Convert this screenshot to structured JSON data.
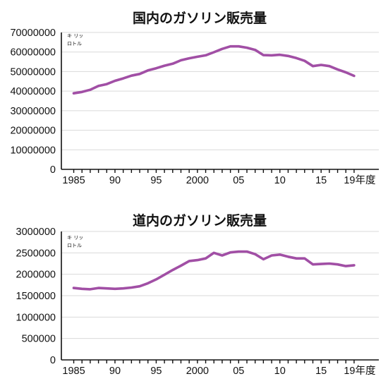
{
  "colors": {
    "series": "#a14fa5",
    "grid": "#d9d9d9",
    "axis": "#111111"
  },
  "chart_data": [
    {
      "type": "line",
      "title": "国内のガソリン販売量",
      "unit_label": [
        "キ リッ",
        "ロトル"
      ],
      "x": [
        1985,
        1986,
        1987,
        1988,
        1989,
        1990,
        1991,
        1992,
        1993,
        1994,
        1995,
        1996,
        1997,
        1998,
        1999,
        2000,
        2001,
        2002,
        2003,
        2004,
        2005,
        2006,
        2007,
        2008,
        2009,
        2010,
        2011,
        2012,
        2013,
        2014,
        2015,
        2016,
        2017,
        2018,
        2019
      ],
      "x_tick_labels": [
        "1985",
        "90",
        "95",
        "2000",
        "05",
        "10",
        "15",
        "19年度"
      ],
      "y_tick_labels": [
        "0",
        "10000000",
        "20000000",
        "30000000",
        "40000000",
        "50000000",
        "60000000",
        "70000000"
      ],
      "ylim": [
        0,
        70000000
      ],
      "grid": true,
      "series": [
        {
          "values": [
            38900000,
            39600000,
            40700000,
            42700000,
            43600000,
            45300000,
            46500000,
            47900000,
            48800000,
            50600000,
            51700000,
            53000000,
            54000000,
            55800000,
            56800000,
            57600000,
            58300000,
            59900000,
            61600000,
            62900000,
            62900000,
            62200000,
            61100000,
            58400000,
            58300000,
            58600000,
            58000000,
            56900000,
            55500000,
            52800000,
            53400000,
            52800000,
            51100000,
            49600000,
            47800000
          ]
        }
      ]
    },
    {
      "type": "line",
      "title": "道内のガソリン販売量",
      "unit_label": [
        "キ リッ",
        "ロトル"
      ],
      "x": [
        1985,
        1986,
        1987,
        1988,
        1989,
        1990,
        1991,
        1992,
        1993,
        1994,
        1995,
        1996,
        1997,
        1998,
        1999,
        2000,
        2001,
        2002,
        2003,
        2004,
        2005,
        2006,
        2007,
        2008,
        2009,
        2010,
        2011,
        2012,
        2013,
        2014,
        2015,
        2016,
        2017,
        2018,
        2019
      ],
      "x_tick_labels": [
        "1985",
        "90",
        "95",
        "2000",
        "05",
        "10",
        "15",
        "19年度"
      ],
      "y_tick_labels": [
        "0",
        "500000",
        "1000000",
        "1500000",
        "2000000",
        "2500000",
        "3000000"
      ],
      "ylim": [
        0,
        3000000
      ],
      "grid": true,
      "series": [
        {
          "values": [
            1680000,
            1660000,
            1650000,
            1680000,
            1670000,
            1660000,
            1670000,
            1690000,
            1720000,
            1790000,
            1880000,
            1990000,
            2100000,
            2200000,
            2310000,
            2330000,
            2370000,
            2500000,
            2440000,
            2510000,
            2530000,
            2530000,
            2470000,
            2350000,
            2440000,
            2460000,
            2410000,
            2370000,
            2370000,
            2230000,
            2240000,
            2250000,
            2230000,
            2190000,
            2210000
          ]
        }
      ]
    }
  ]
}
